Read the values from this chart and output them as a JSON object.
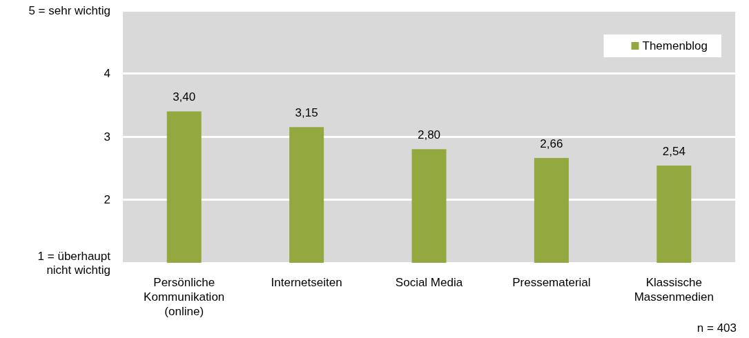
{
  "chart_data": {
    "type": "bar",
    "categories": [
      "Persönliche\nKommunikation\n(online)",
      "Internetseiten",
      "Social Media",
      "Pressematerial",
      "Klassische\nMassenmedien"
    ],
    "series": [
      {
        "name": "Themenblog",
        "color": "#93a83f",
        "values": [
          3.4,
          3.15,
          2.8,
          2.66,
          2.54
        ],
        "value_labels": [
          "3,40",
          "3,15",
          "2,80",
          "2,66",
          "2,54"
        ]
      }
    ],
    "ylim": [
      1,
      5
    ],
    "yticks": [
      {
        "value": 1,
        "label": "1 = überhaupt\nnicht wichtig"
      },
      2,
      3,
      4,
      {
        "value": 5,
        "label": "5 = sehr wichtig"
      }
    ],
    "grid": "y",
    "legend": "top right",
    "annotations": [
      "n = 403"
    ]
  }
}
